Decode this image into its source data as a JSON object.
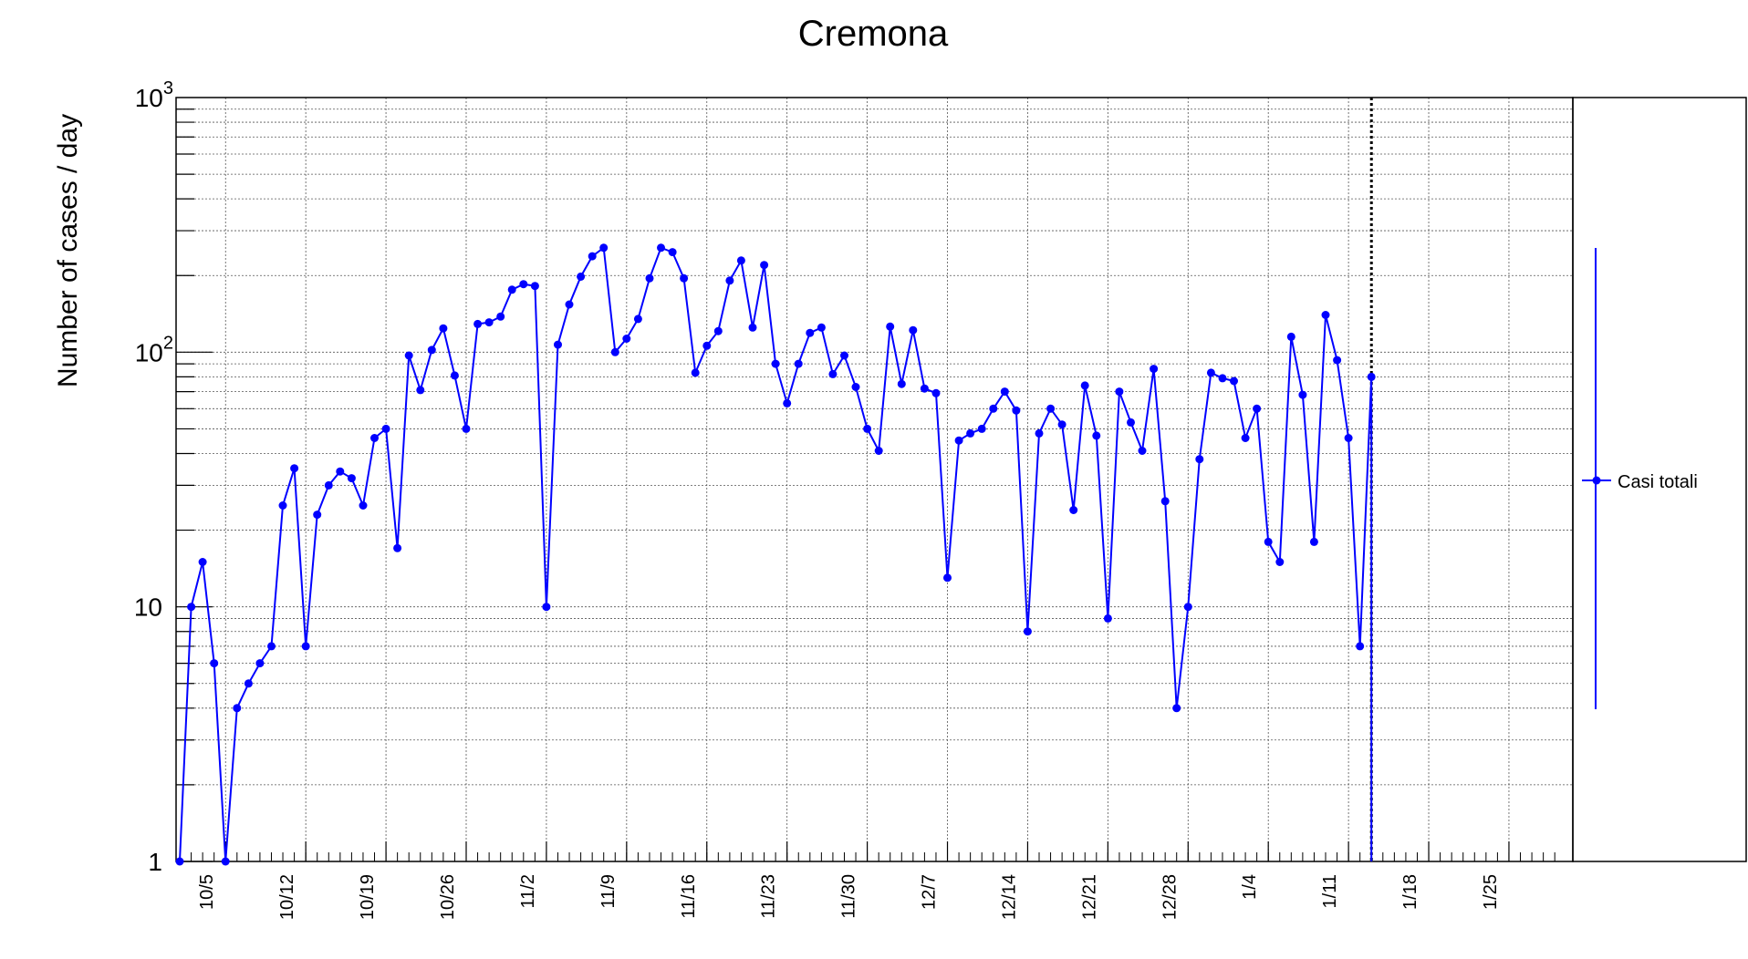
{
  "chart_data": {
    "type": "line",
    "title": "Cremona",
    "ylabel": "Number of cases / day",
    "xlabel": "",
    "yscale": "log",
    "ylim": [
      1,
      1000
    ],
    "y_tick_labels": [
      {
        "value": 1,
        "base": "1",
        "exp": ""
      },
      {
        "value": 10,
        "base": "10",
        "exp": ""
      },
      {
        "value": 100,
        "base": "10",
        "exp": "2"
      },
      {
        "value": 1000,
        "base": "10",
        "exp": "3"
      }
    ],
    "x_tick_labels": [
      "10/5",
      "10/12",
      "10/19",
      "10/26",
      "11/2",
      "11/9",
      "11/16",
      "11/23",
      "11/30",
      "12/7",
      "12/14",
      "12/21",
      "12/28",
      "1/4",
      "1/11",
      "1/18",
      "1/25"
    ],
    "grid": true,
    "legend_position": "right",
    "marker_line": "1/13",
    "series": [
      {
        "name": "Casi totali",
        "color": "#0000ff",
        "x": [
          "10/1",
          "10/2",
          "10/3",
          "10/4",
          "10/5",
          "10/6",
          "10/7",
          "10/8",
          "10/9",
          "10/10",
          "10/11",
          "10/12",
          "10/13",
          "10/14",
          "10/15",
          "10/16",
          "10/17",
          "10/18",
          "10/19",
          "10/20",
          "10/21",
          "10/22",
          "10/23",
          "10/24",
          "10/25",
          "10/26",
          "10/27",
          "10/28",
          "10/29",
          "10/30",
          "10/31",
          "11/1",
          "11/2",
          "11/3",
          "11/4",
          "11/5",
          "11/6",
          "11/7",
          "11/8",
          "11/9",
          "11/10",
          "11/11",
          "11/12",
          "11/13",
          "11/14",
          "11/15",
          "11/16",
          "11/17",
          "11/18",
          "11/19",
          "11/20",
          "11/21",
          "11/22",
          "11/23",
          "11/24",
          "11/25",
          "11/26",
          "11/27",
          "11/28",
          "11/29",
          "11/30",
          "12/1",
          "12/2",
          "12/3",
          "12/4",
          "12/5",
          "12/6",
          "12/7",
          "12/8",
          "12/9",
          "12/10",
          "12/11",
          "12/12",
          "12/13",
          "12/14",
          "12/15",
          "12/16",
          "12/17",
          "12/18",
          "12/19",
          "12/20",
          "12/21",
          "12/22",
          "12/23",
          "12/24",
          "12/25",
          "12/26",
          "12/27",
          "12/28",
          "12/29",
          "12/30",
          "12/31",
          "1/1",
          "1/2",
          "1/3",
          "1/4",
          "1/5",
          "1/6",
          "1/7",
          "1/8",
          "1/9",
          "1/10",
          "1/11",
          "1/12",
          "1/13"
        ],
        "y": [
          1,
          10,
          15,
          6,
          1,
          4,
          5,
          6,
          7,
          25,
          35,
          7,
          23,
          30,
          34,
          32,
          25,
          46,
          50,
          17,
          97,
          71,
          102,
          124,
          81,
          50,
          129,
          131,
          138,
          176,
          185,
          182,
          10,
          107,
          154,
          198,
          238,
          257,
          100,
          113,
          135,
          195,
          257,
          247,
          195,
          83,
          106,
          121,
          191,
          229,
          125,
          220,
          90,
          63,
          90,
          119,
          125,
          82,
          97,
          73,
          50,
          41,
          126,
          75,
          122,
          72,
          69,
          13,
          45,
          48,
          50,
          60,
          70,
          59,
          8,
          48,
          60,
          52,
          24,
          74,
          47,
          9,
          70,
          53,
          41,
          86,
          26,
          4,
          10,
          38,
          83,
          79,
          77,
          46,
          60,
          18,
          15,
          115,
          68,
          18,
          140,
          93,
          46,
          7,
          80
        ]
      }
    ]
  }
}
